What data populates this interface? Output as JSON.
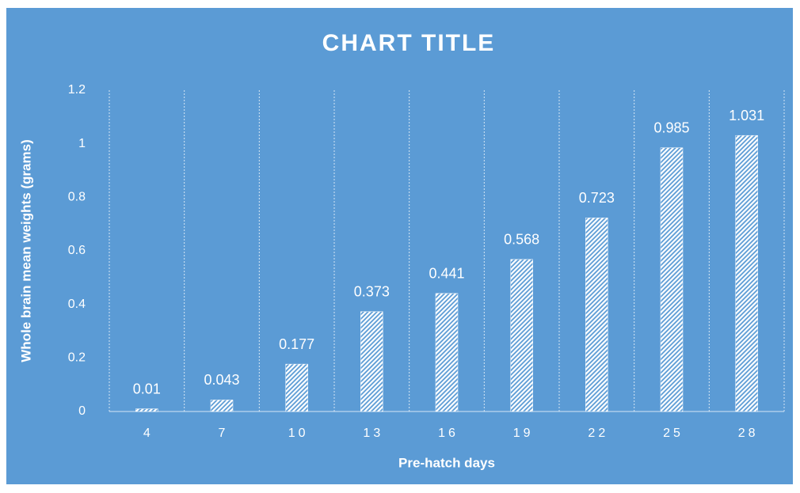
{
  "chart_data": {
    "type": "bar",
    "title": "CHART TITLE",
    "x_label": "Pre-hatch days",
    "y_label": "Whole brain mean weights (grams)",
    "categories": [
      "4",
      "7",
      "10",
      "13",
      "16",
      "19",
      "22",
      "25",
      "28"
    ],
    "values": [
      0.01,
      0.043,
      0.177,
      0.373,
      0.441,
      0.568,
      0.723,
      0.985,
      1.031
    ],
    "color": "#ffffff",
    "ylim": [
      0,
      1.2
    ],
    "yticks": [
      0,
      0.2,
      0.4,
      0.6,
      0.8,
      1,
      1.2
    ],
    "grid": false
  }
}
